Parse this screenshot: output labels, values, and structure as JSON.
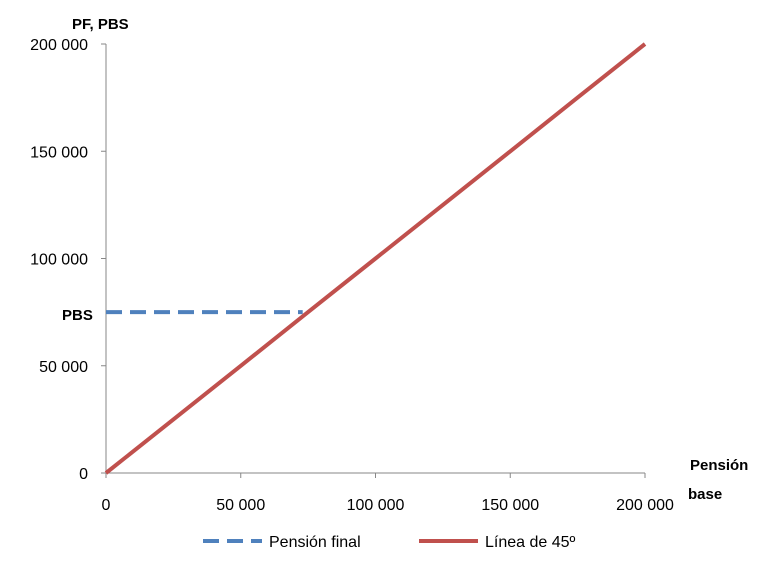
{
  "chart_data": {
    "type": "line",
    "title": "",
    "ylabel": "PF, PBS",
    "xlabel_line1": "Pensión",
    "xlabel_line2": "base",
    "xlim": [
      0,
      200000
    ],
    "ylim": [
      0,
      200000
    ],
    "x_ticks": [
      0,
      50000,
      100000,
      150000,
      200000
    ],
    "y_ticks": [
      0,
      50000,
      100000,
      150000,
      200000
    ],
    "x_tick_labels": [
      "0",
      "50 000",
      "100 000",
      "150 000",
      "200 000"
    ],
    "y_tick_labels": [
      "0",
      "50 000",
      "100 000",
      "150 000",
      "200 000"
    ],
    "annotation": {
      "text": "PBS",
      "y": 75000
    },
    "grid": false,
    "legend_position": "bottom",
    "series": [
      {
        "name": "Pensión final",
        "color": "#4F81BD",
        "dash": true,
        "x": [
          0,
          73000
        ],
        "y": [
          75000,
          75000
        ]
      },
      {
        "name": "Línea de 45º",
        "color": "#C0504D",
        "dash": false,
        "x": [
          0,
          25000,
          50000,
          75000,
          100000,
          125000,
          150000,
          175000,
          200000
        ],
        "y": [
          0,
          25000,
          50000,
          75000,
          100000,
          125000,
          150000,
          175000,
          200000
        ]
      }
    ]
  }
}
